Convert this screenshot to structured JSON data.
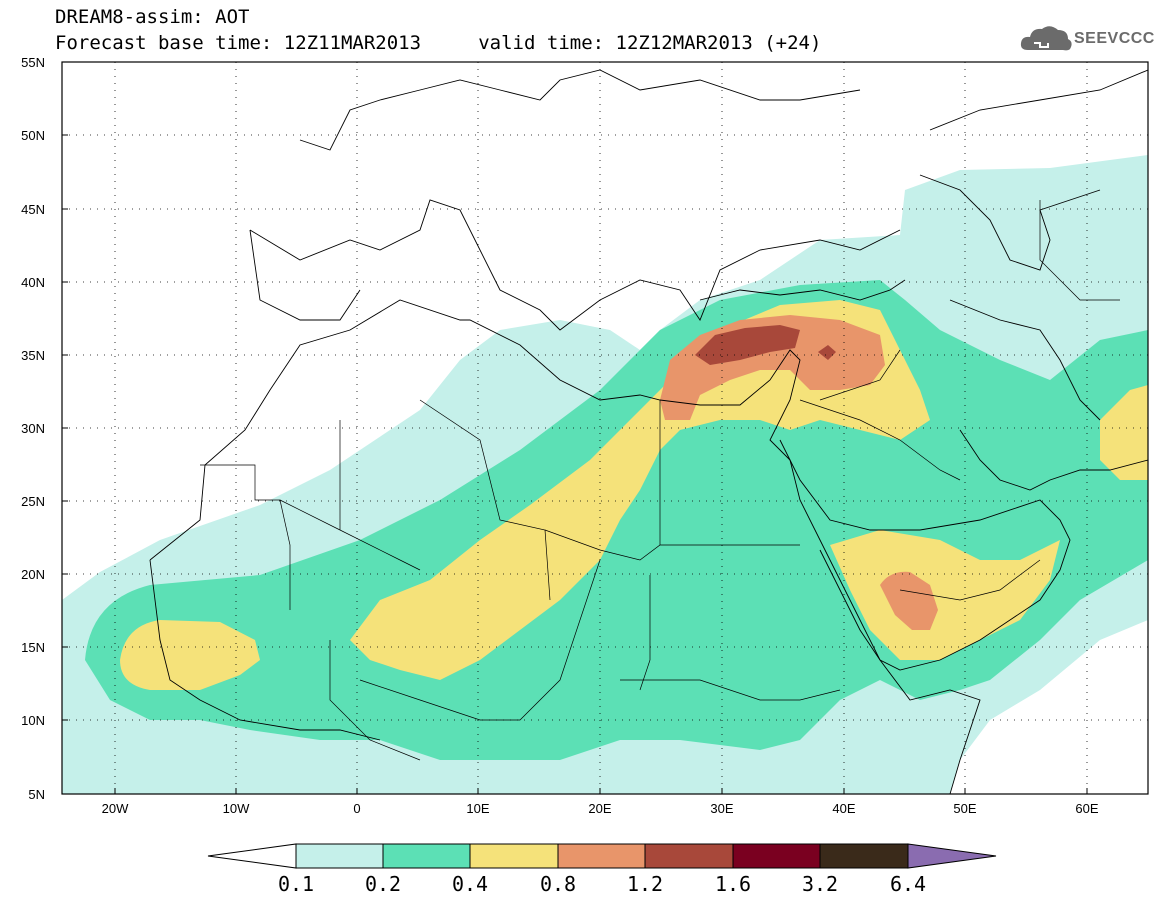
{
  "title": {
    "line1": "DREAM8-assim: AOT",
    "line2": "Forecast base time: 12Z11MAR2013     valid time: 12Z12MAR2013 (+24)"
  },
  "logo": {
    "text": "SEEVCCC",
    "icon": "cloud-logo-icon"
  },
  "map": {
    "lon_labels": [
      "20W",
      "10W",
      "0",
      "10E",
      "20E",
      "30E",
      "40E",
      "50E",
      "60E"
    ],
    "lat_labels": [
      "55N",
      "50N",
      "45N",
      "40N",
      "35N",
      "30N",
      "25N",
      "20N",
      "15N",
      "10N",
      "5N"
    ],
    "lon_range": [
      -25,
      65
    ],
    "lat_range": [
      5,
      55
    ],
    "grid": true
  },
  "colorbar": {
    "labels": [
      "0.1",
      "0.2",
      "0.4",
      "0.8",
      "1.2",
      "1.6",
      "3.2",
      "6.4"
    ],
    "colors": {
      "below": "#ffffff",
      "c1": "#c5f0ea",
      "c2": "#5ce0b5",
      "c3": "#f5e27a",
      "c4": "#e8956a",
      "c5": "#a8483a",
      "c6": "#7a0020",
      "c7": "#3a2a1a",
      "above": "#8a6cb0"
    }
  }
}
